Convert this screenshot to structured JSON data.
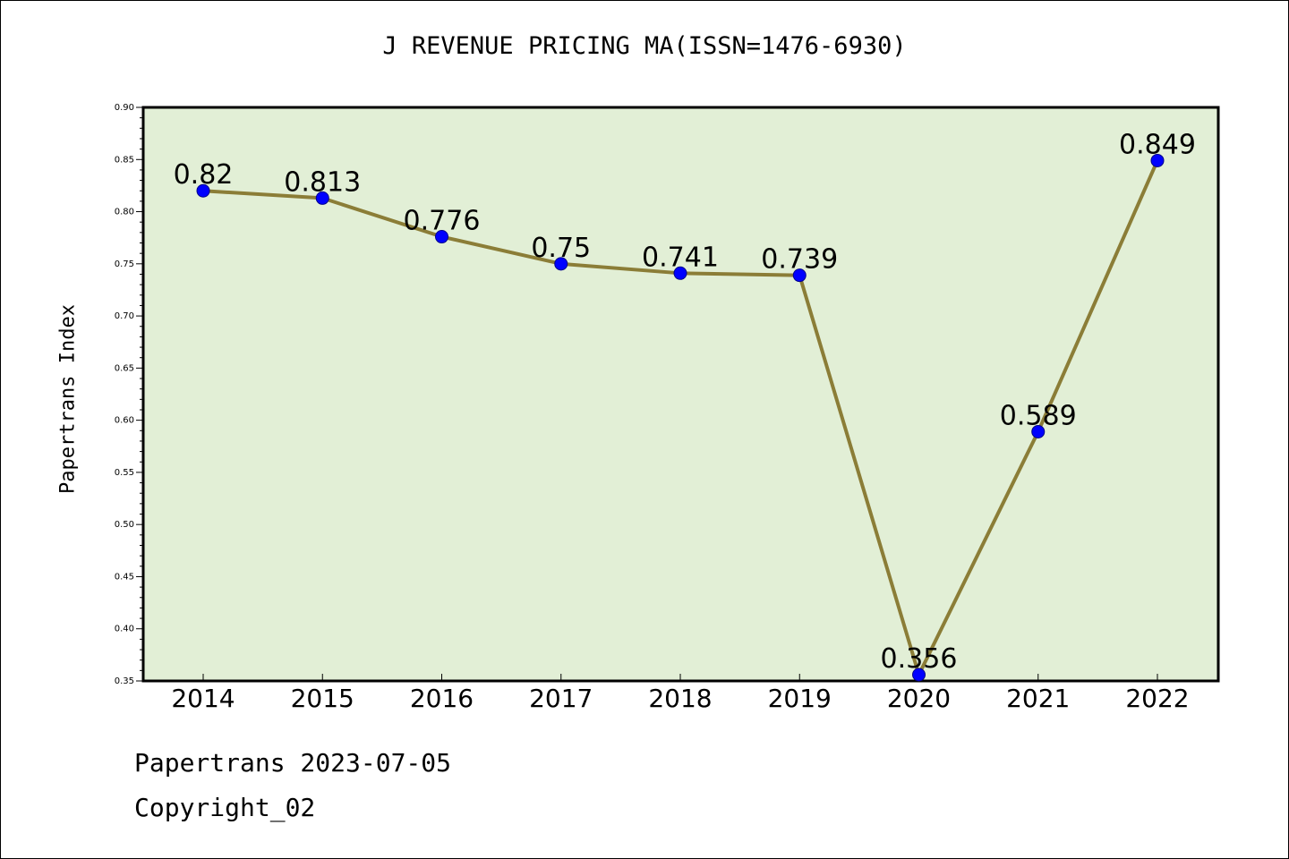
{
  "title": "J REVENUE PRICING MA(ISSN=1476-6930)",
  "footer": {
    "line1": "Papertrans 2023-07-05",
    "line2": "Copyright_02"
  },
  "colors": {
    "plot_background": "#e2efd6",
    "line": "#8b7d37",
    "marker": "#0000ff"
  },
  "chart_data": {
    "type": "line",
    "title": "J REVENUE PRICING MA(ISSN=1476-6930)",
    "xlabel": "",
    "ylabel": "Papertrans Index",
    "categories": [
      "2014",
      "2015",
      "2016",
      "2017",
      "2018",
      "2019",
      "2020",
      "2021",
      "2022"
    ],
    "values": [
      0.82,
      0.813,
      0.776,
      0.75,
      0.741,
      0.739,
      0.356,
      0.589,
      0.849
    ],
    "data_labels": [
      "0.82",
      "0.813",
      "0.776",
      "0.75",
      "0.741",
      "0.739",
      "0.356",
      "0.589",
      "0.849"
    ],
    "ylim": [
      0.35,
      0.9
    ],
    "yticks": [
      "0.35",
      "0.40",
      "0.45",
      "0.50",
      "0.55",
      "0.60",
      "0.65",
      "0.70",
      "0.75",
      "0.80",
      "0.85",
      "0.90"
    ],
    "grid": false,
    "legend": "none"
  }
}
